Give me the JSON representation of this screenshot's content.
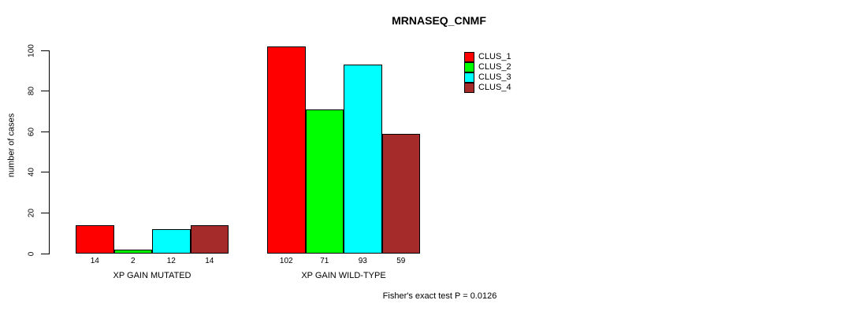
{
  "chart_data": {
    "type": "bar",
    "title": "MRNASEQ_CNMF",
    "ylabel": "number of cases",
    "xlabel": "",
    "ylim": [
      0,
      100
    ],
    "yticks": [
      0,
      20,
      40,
      60,
      80,
      100
    ],
    "categories": [
      "XP GAIN MUTATED",
      "XP GAIN WILD-TYPE"
    ],
    "series": [
      {
        "name": "CLUS_1",
        "color": "#FF0000",
        "values": [
          14,
          102
        ]
      },
      {
        "name": "CLUS_2",
        "color": "#00FF00",
        "values": [
          2,
          71
        ]
      },
      {
        "name": "CLUS_3",
        "color": "#00FFFF",
        "values": [
          12,
          93
        ]
      },
      {
        "name": "CLUS_4",
        "color": "#A52A2A",
        "values": [
          14,
          59
        ]
      }
    ],
    "show_bar_value_labels": true,
    "legend_position": "top-right",
    "grid": false,
    "annotation": "Fisher's exact test P = 0.0126"
  }
}
